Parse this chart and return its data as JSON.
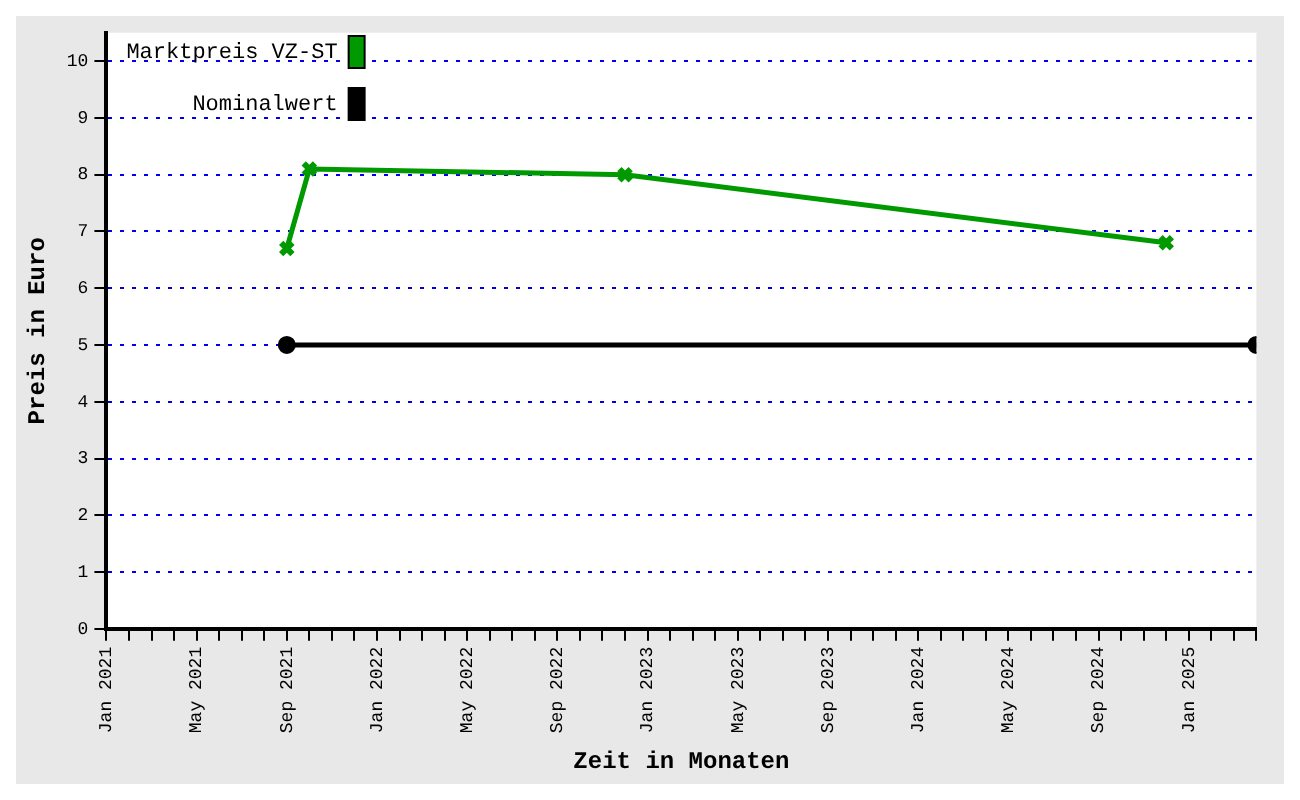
{
  "chart_data": {
    "type": "line",
    "xlabel": "Zeit in Monaten",
    "ylabel": "Preis in Euro",
    "series": [
      {
        "name": "Marktpreis VZ-ST",
        "color": "#009900",
        "marker": "cross",
        "x": [
          "2021-09",
          "2021-10",
          "2022-12",
          "2024-12"
        ],
        "values": [
          6.7,
          8.1,
          8.0,
          6.8
        ]
      },
      {
        "name": "Nominalwert",
        "color": "#000000",
        "marker": "circle",
        "x": [
          "2021-09",
          "2025-04"
        ],
        "values": [
          5,
          5
        ]
      }
    ],
    "xlim": [
      "2021-01",
      "2025-04"
    ],
    "xticks": [
      {
        "value": "2021-01",
        "label": "Jan 2021"
      },
      {
        "value": "2021-02",
        "label": null
      },
      {
        "value": "2021-03",
        "label": null
      },
      {
        "value": "2021-04",
        "label": null
      },
      {
        "value": "2021-05",
        "label": "May 2021"
      },
      {
        "value": "2021-06",
        "label": null
      },
      {
        "value": "2021-07",
        "label": null
      },
      {
        "value": "2021-08",
        "label": null
      },
      {
        "value": "2021-09",
        "label": "Sep 2021"
      },
      {
        "value": "2021-10",
        "label": null
      },
      {
        "value": "2021-11",
        "label": null
      },
      {
        "value": "2021-12",
        "label": null
      },
      {
        "value": "2022-01",
        "label": "Jan 2022"
      },
      {
        "value": "2022-02",
        "label": null
      },
      {
        "value": "2022-03",
        "label": null
      },
      {
        "value": "2022-04",
        "label": null
      },
      {
        "value": "2022-05",
        "label": "May 2022"
      },
      {
        "value": "2022-06",
        "label": null
      },
      {
        "value": "2022-07",
        "label": null
      },
      {
        "value": "2022-08",
        "label": null
      },
      {
        "value": "2022-09",
        "label": "Sep 2022"
      },
      {
        "value": "2022-10",
        "label": null
      },
      {
        "value": "2022-11",
        "label": null
      },
      {
        "value": "2022-12",
        "label": null
      },
      {
        "value": "2023-01",
        "label": "Jan 2023"
      },
      {
        "value": "2023-02",
        "label": null
      },
      {
        "value": "2023-03",
        "label": null
      },
      {
        "value": "2023-04",
        "label": null
      },
      {
        "value": "2023-05",
        "label": "May 2023"
      },
      {
        "value": "2023-06",
        "label": null
      },
      {
        "value": "2023-07",
        "label": null
      },
      {
        "value": "2023-08",
        "label": null
      },
      {
        "value": "2023-09",
        "label": "Sep 2023"
      },
      {
        "value": "2023-10",
        "label": null
      },
      {
        "value": "2023-11",
        "label": null
      },
      {
        "value": "2023-12",
        "label": null
      },
      {
        "value": "2024-01",
        "label": "Jan 2024"
      },
      {
        "value": "2024-02",
        "label": null
      },
      {
        "value": "2024-03",
        "label": null
      },
      {
        "value": "2024-04",
        "label": null
      },
      {
        "value": "2024-05",
        "label": "May 2024"
      },
      {
        "value": "2024-06",
        "label": null
      },
      {
        "value": "2024-07",
        "label": null
      },
      {
        "value": "2024-08",
        "label": null
      },
      {
        "value": "2024-09",
        "label": "Sep 2024"
      },
      {
        "value": "2024-10",
        "label": null
      },
      {
        "value": "2024-11",
        "label": null
      },
      {
        "value": "2024-12",
        "label": null
      },
      {
        "value": "2025-01",
        "label": "Jan 2025"
      },
      {
        "value": "2025-02",
        "label": null
      },
      {
        "value": "2025-03",
        "label": null
      },
      {
        "value": "2025-04",
        "label": null
      }
    ],
    "ylim": [
      0,
      10.5
    ],
    "yticks": [
      0,
      1,
      2,
      3,
      4,
      5,
      6,
      7,
      8,
      9,
      10
    ],
    "grid": "y",
    "legend": "top left",
    "line_style": "solid"
  }
}
